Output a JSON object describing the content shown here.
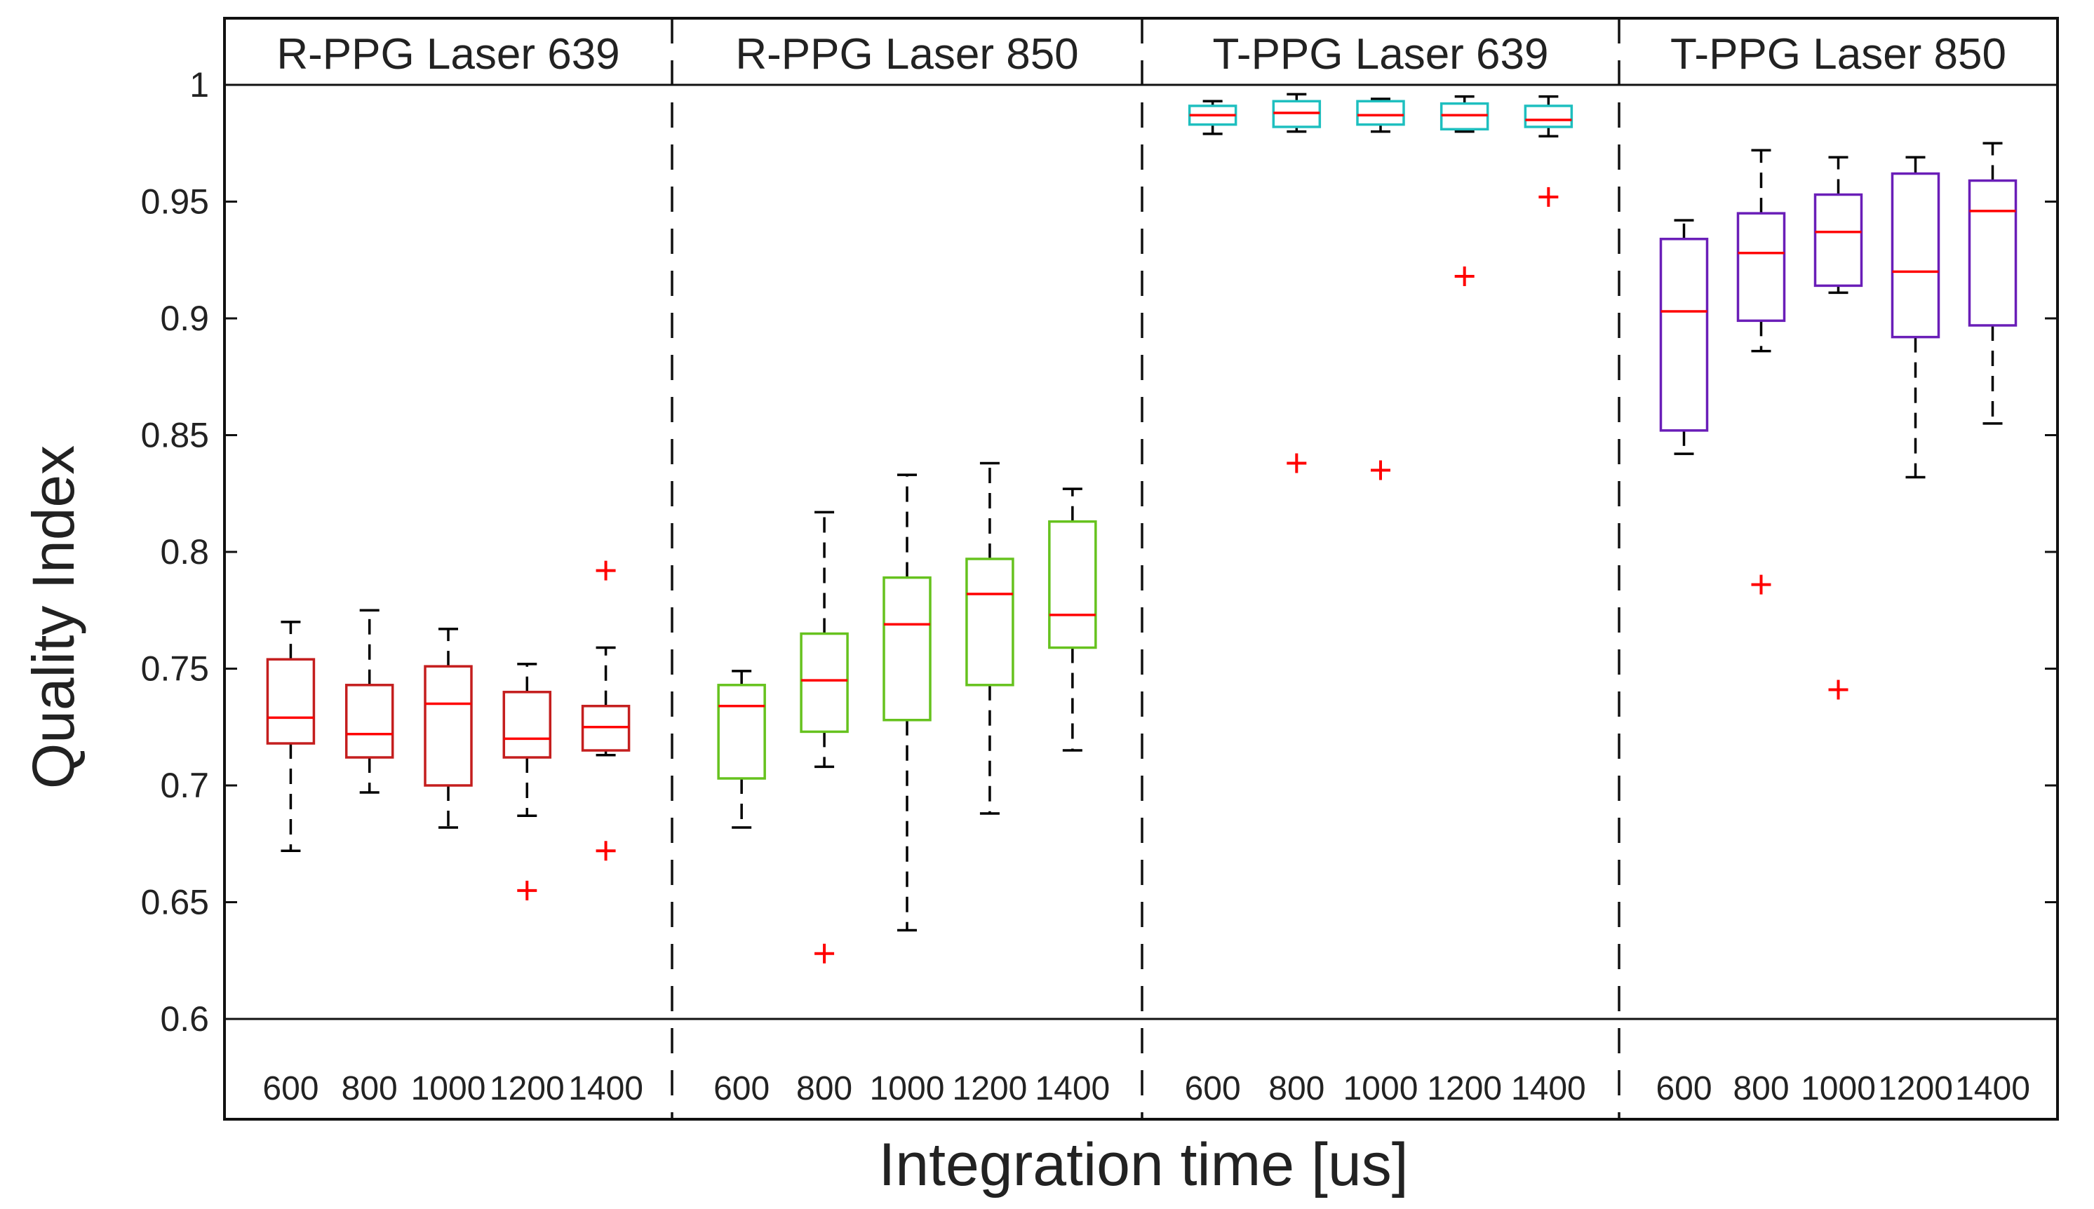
{
  "chart_data": {
    "type": "box",
    "title": "",
    "xlabel": "Integration time [us]",
    "ylabel": "Quality Index",
    "ylim": [
      0.6,
      1.0
    ],
    "yticks": [
      "0.6",
      "0.65",
      "0.7",
      "0.75",
      "0.8",
      "0.85",
      "0.9",
      "0.95",
      "1"
    ],
    "grid": false,
    "panels": [
      {
        "title": "R-PPG Laser 639",
        "color": "#c41e1e",
        "categories": [
          "600",
          "800",
          "1000",
          "1200",
          "1400"
        ],
        "boxes": [
          {
            "whisker_low": 0.672,
            "q1": 0.718,
            "median": 0.729,
            "q3": 0.754,
            "whisker_high": 0.77,
            "outliers": []
          },
          {
            "whisker_low": 0.697,
            "q1": 0.712,
            "median": 0.722,
            "q3": 0.743,
            "whisker_high": 0.775,
            "outliers": []
          },
          {
            "whisker_low": 0.682,
            "q1": 0.7,
            "median": 0.735,
            "q3": 0.751,
            "whisker_high": 0.767,
            "outliers": []
          },
          {
            "whisker_low": 0.687,
            "q1": 0.712,
            "median": 0.72,
            "q3": 0.74,
            "whisker_high": 0.752,
            "outliers": [
              0.655
            ]
          },
          {
            "whisker_low": 0.713,
            "q1": 0.715,
            "median": 0.725,
            "q3": 0.734,
            "whisker_high": 0.759,
            "outliers": [
              0.792,
              0.672
            ]
          }
        ]
      },
      {
        "title": "R-PPG Laser 850",
        "color": "#66c21e",
        "categories": [
          "600",
          "800",
          "1000",
          "1200",
          "1400"
        ],
        "boxes": [
          {
            "whisker_low": 0.682,
            "q1": 0.703,
            "median": 0.734,
            "q3": 0.743,
            "whisker_high": 0.749,
            "outliers": []
          },
          {
            "whisker_low": 0.708,
            "q1": 0.723,
            "median": 0.745,
            "q3": 0.765,
            "whisker_high": 0.817,
            "outliers": [
              0.628
            ]
          },
          {
            "whisker_low": 0.638,
            "q1": 0.728,
            "median": 0.769,
            "q3": 0.789,
            "whisker_high": 0.833,
            "outliers": []
          },
          {
            "whisker_low": 0.688,
            "q1": 0.743,
            "median": 0.782,
            "q3": 0.797,
            "whisker_high": 0.838,
            "outliers": []
          },
          {
            "whisker_low": 0.715,
            "q1": 0.759,
            "median": 0.773,
            "q3": 0.813,
            "whisker_high": 0.827,
            "outliers": []
          }
        ]
      },
      {
        "title": "T-PPG Laser 639",
        "color": "#1ebfbf",
        "categories": [
          "600",
          "800",
          "1000",
          "1200",
          "1400"
        ],
        "boxes": [
          {
            "whisker_low": 0.979,
            "q1": 0.983,
            "median": 0.987,
            "q3": 0.991,
            "whisker_high": 0.993,
            "outliers": []
          },
          {
            "whisker_low": 0.98,
            "q1": 0.982,
            "median": 0.988,
            "q3": 0.993,
            "whisker_high": 0.996,
            "outliers": [
              0.838
            ]
          },
          {
            "whisker_low": 0.98,
            "q1": 0.983,
            "median": 0.987,
            "q3": 0.993,
            "whisker_high": 0.994,
            "outliers": [
              0.835
            ]
          },
          {
            "whisker_low": 0.98,
            "q1": 0.981,
            "median": 0.987,
            "q3": 0.992,
            "whisker_high": 0.995,
            "outliers": [
              0.918
            ]
          },
          {
            "whisker_low": 0.978,
            "q1": 0.982,
            "median": 0.985,
            "q3": 0.991,
            "whisker_high": 0.995,
            "outliers": [
              0.952
            ]
          }
        ]
      },
      {
        "title": "T-PPG Laser 850",
        "color": "#6a1eb8",
        "categories": [
          "600",
          "800",
          "1000",
          "1200",
          "1400"
        ],
        "boxes": [
          {
            "whisker_low": 0.842,
            "q1": 0.852,
            "median": 0.903,
            "q3": 0.934,
            "whisker_high": 0.942,
            "outliers": []
          },
          {
            "whisker_low": 0.886,
            "q1": 0.899,
            "median": 0.928,
            "q3": 0.945,
            "whisker_high": 0.972,
            "outliers": [
              0.786
            ]
          },
          {
            "whisker_low": 0.911,
            "q1": 0.914,
            "median": 0.937,
            "q3": 0.953,
            "whisker_high": 0.969,
            "outliers": [
              0.741
            ]
          },
          {
            "whisker_low": 0.832,
            "q1": 0.892,
            "median": 0.92,
            "q3": 0.962,
            "whisker_high": 0.969,
            "outliers": []
          },
          {
            "whisker_low": 0.855,
            "q1": 0.897,
            "median": 0.946,
            "q3": 0.959,
            "whisker_high": 0.975,
            "outliers": []
          }
        ]
      }
    ],
    "median_color": "#ff0000",
    "outlier_color": "#ff0000",
    "whisker_color": "#000000"
  }
}
